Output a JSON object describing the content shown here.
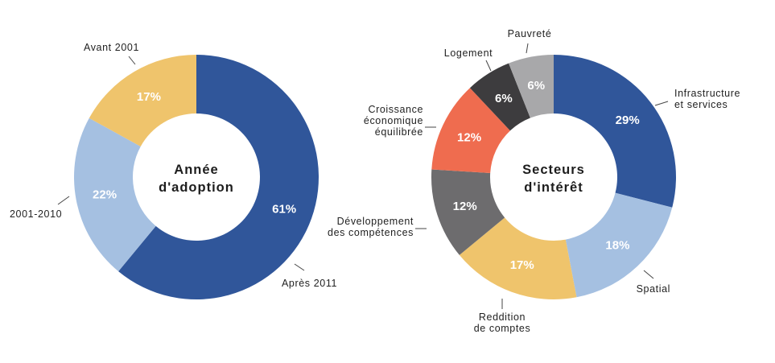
{
  "chart_data": [
    {
      "type": "pie",
      "donut": true,
      "center_label": [
        "Année",
        "d'adoption"
      ],
      "slices": [
        {
          "label": "Après 2011",
          "value": 61,
          "display": "61%",
          "color": "#30569a"
        },
        {
          "label": "2001-2010",
          "value": 22,
          "display": "22%",
          "color": "#a5c0e1"
        },
        {
          "label": "Avant 2001",
          "value": 17,
          "display": "17%",
          "color": "#efc46c"
        }
      ]
    },
    {
      "type": "pie",
      "donut": true,
      "center_label": [
        "Secteurs",
        "d'intérêt"
      ],
      "slices": [
        {
          "label": "Infrastructure\net services",
          "value": 29,
          "display": "29%",
          "color": "#30569a"
        },
        {
          "label": "Spatial",
          "value": 18,
          "display": "18%",
          "color": "#a5c0e1"
        },
        {
          "label": "Reddition\nde comptes",
          "value": 17,
          "display": "17%",
          "color": "#efc46c"
        },
        {
          "label": "Développement\ndes compétences",
          "value": 12,
          "display": "12%",
          "color": "#6d6c6e"
        },
        {
          "label": "Croissance\néconomique\néquilibrée",
          "value": 12,
          "display": "12%",
          "color": "#ef6c4f"
        },
        {
          "label": "Logement",
          "value": 6,
          "display": "6%",
          "color": "#3d3c3e"
        },
        {
          "label": "Pauvreté",
          "value": 6,
          "display": "6%",
          "color": "#a8a8aa"
        }
      ]
    }
  ]
}
